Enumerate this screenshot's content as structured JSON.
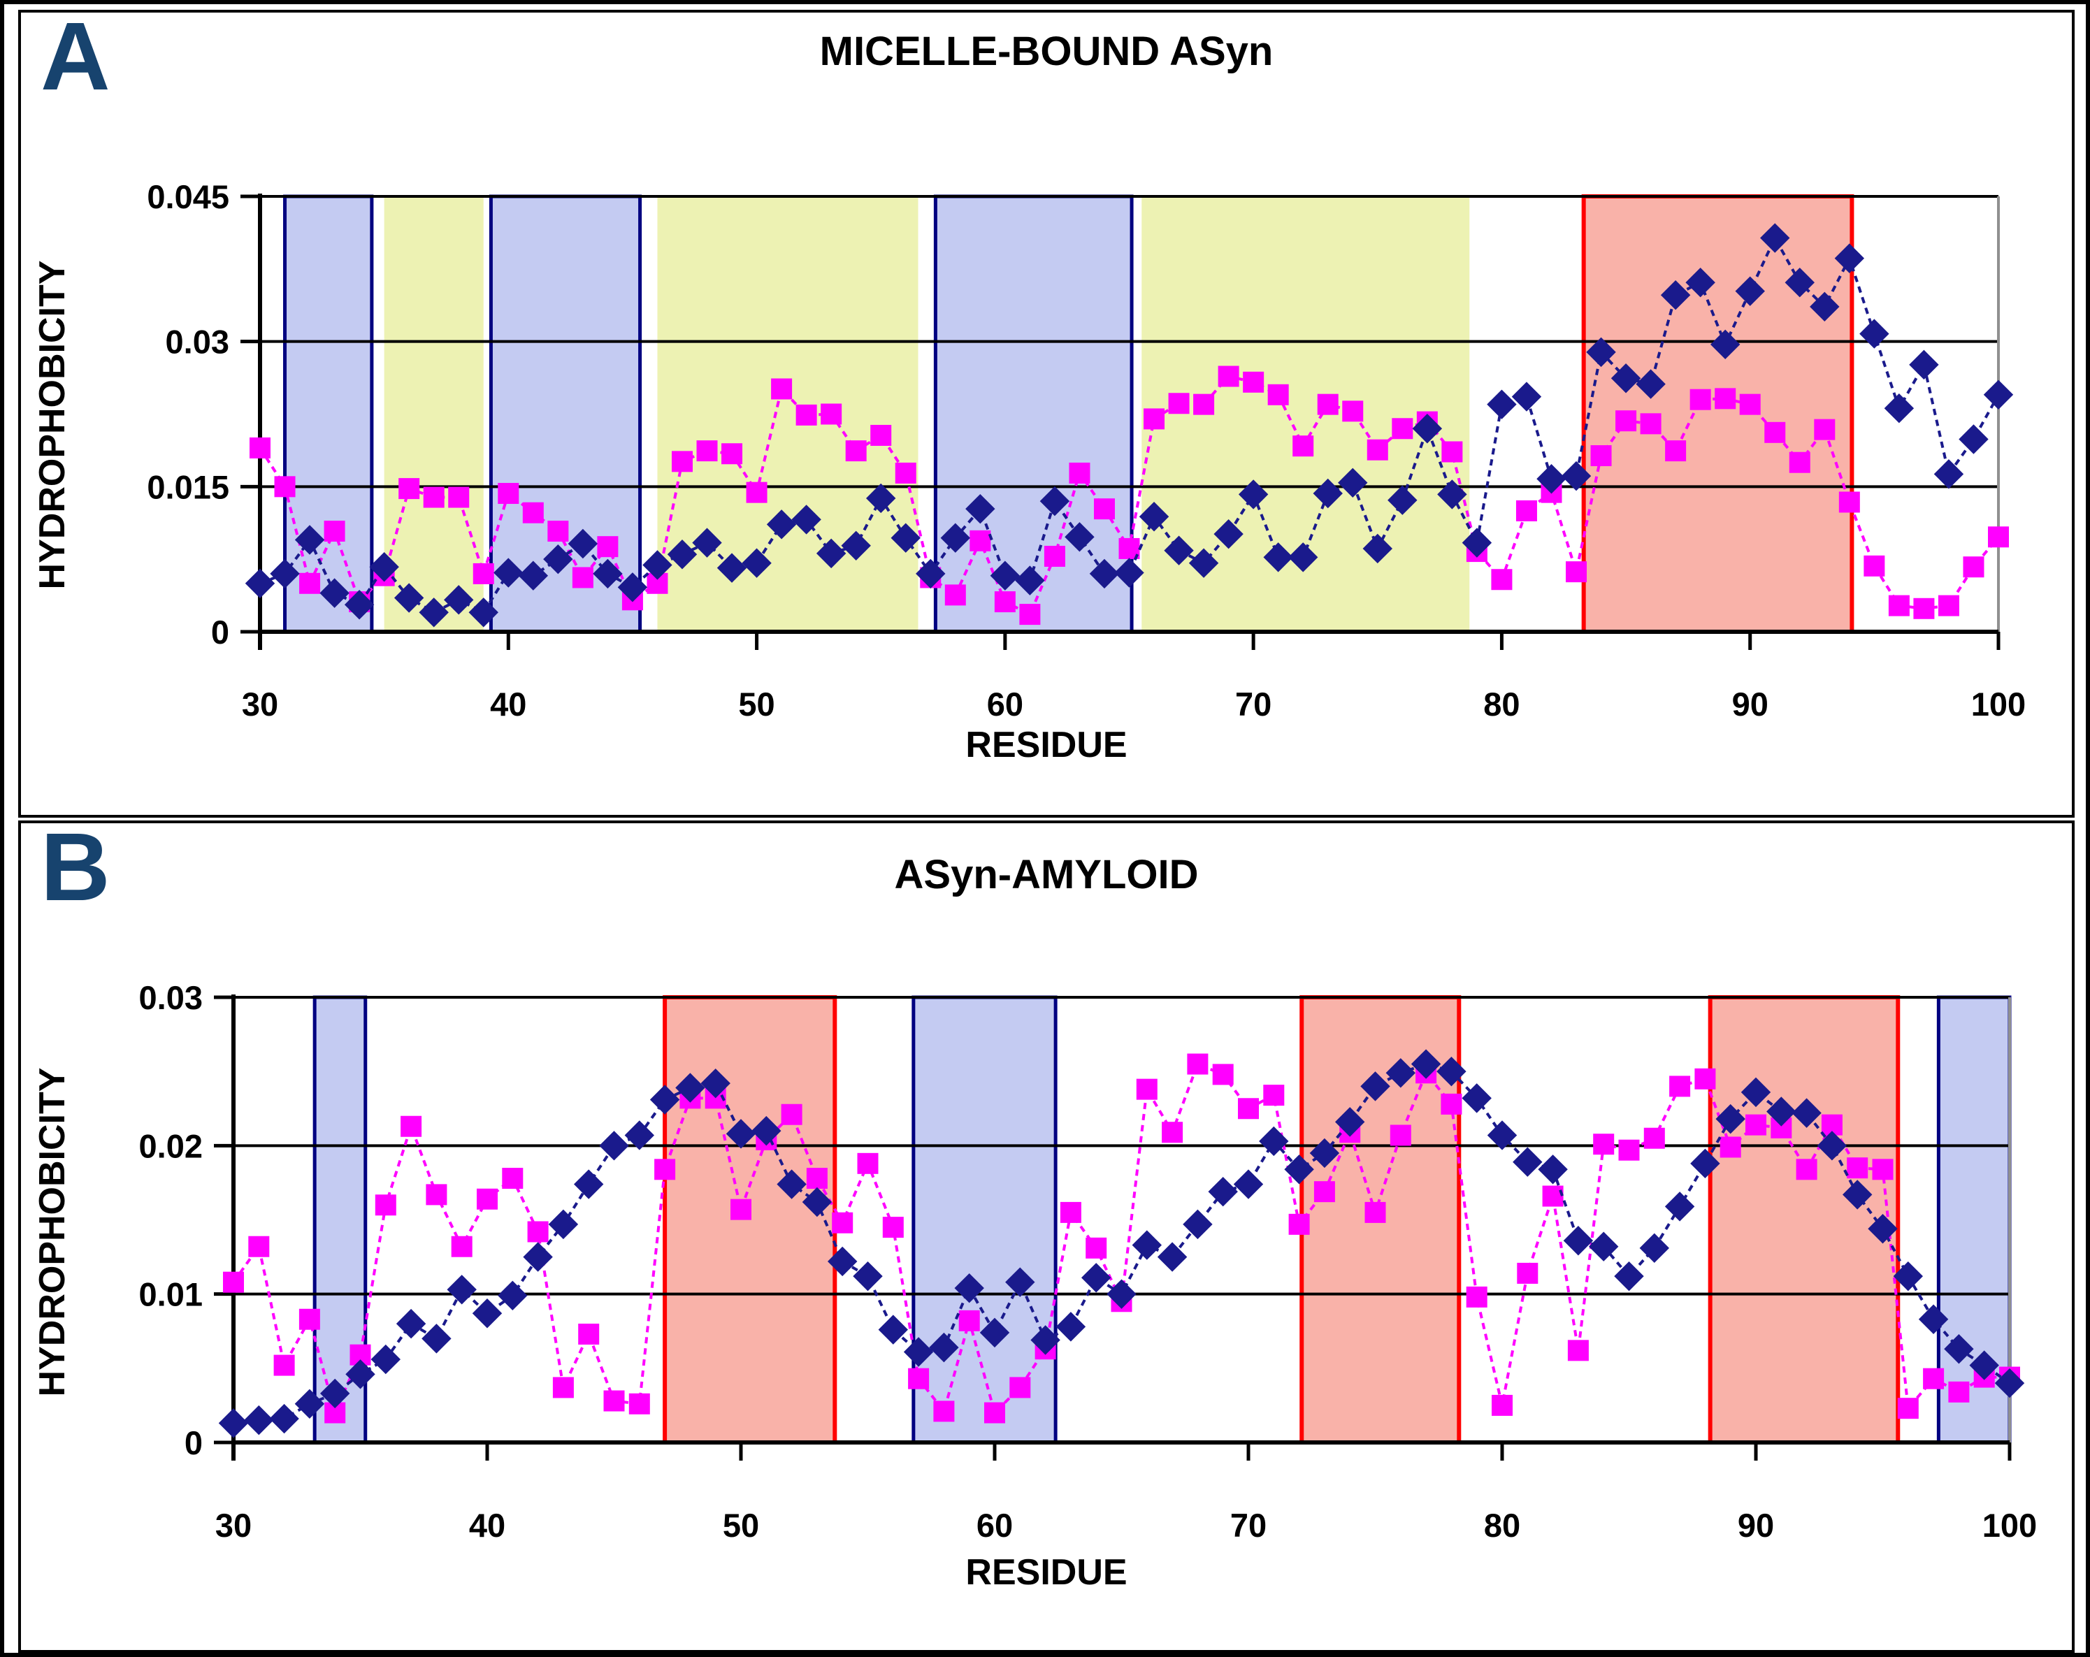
{
  "colors": {
    "navy_series": "#1a1a8c",
    "magenta_series": "#ff00ff",
    "blue_region_fill": "#c4cbf2",
    "blue_region_border": "#000080",
    "yellow_region_fill": "#edf2b3",
    "red_region_fill": "#f9b2a9",
    "red_region_border": "#ff0000",
    "panel_letter": "#17436e",
    "plot_right_edge": "#909090",
    "axis": "#000000"
  },
  "panels": {
    "A": {
      "letter": "A",
      "title": "MICELLE-BOUND ASyn",
      "x_axis_title": "RESIDUE",
      "y_axis_title": "HYDROPHOBICITY"
    },
    "B": {
      "letter": "B",
      "title": "ASyn-AMYLOID",
      "x_axis_title": "RESIDUE",
      "y_axis_title": "HYDROPHOBICITY"
    }
  },
  "chart_data": [
    {
      "panel": "A",
      "type": "line",
      "title": "MICELLE-BOUND ASyn",
      "xlabel": "RESIDUE",
      "ylabel": "HYDROPHOBICITY",
      "xlim": [
        30,
        100
      ],
      "ylim": [
        0,
        0.045
      ],
      "x_ticks": [
        30,
        40,
        50,
        60,
        70,
        80,
        90,
        100
      ],
      "y_tick_labels": [
        "0.045",
        "0.03",
        "0.015",
        "0"
      ],
      "y_tick_values": [
        0.045,
        0.03,
        0.015,
        0
      ],
      "grid": true,
      "legend": "none",
      "x_start": 30,
      "x_step": 1,
      "series": [
        {
          "name": "magenta-squares",
          "marker": "square",
          "color_key": "magenta_series",
          "values": [
            0.019,
            0.015,
            0.005,
            0.0104,
            0.0031,
            0.0058,
            0.0148,
            0.0139,
            0.0139,
            0.006,
            0.0143,
            0.0123,
            0.0104,
            0.0056,
            0.0088,
            0.0033,
            0.005,
            0.0176,
            0.0187,
            0.0184,
            0.0144,
            0.0251,
            0.0224,
            0.0225,
            0.0187,
            0.0203,
            0.0164,
            0.0056,
            0.0038,
            0.0094,
            0.0031,
            0.0018,
            0.0078,
            0.0164,
            0.0127,
            0.0086,
            0.022,
            0.0236,
            0.0235,
            0.0264,
            0.0258,
            0.0245,
            0.0192,
            0.0235,
            0.0228,
            0.0188,
            0.021,
            0.0217,
            0.0186,
            0.0083,
            0.0054,
            0.0125,
            0.0144,
            0.0062,
            0.0182,
            0.0218,
            0.0215,
            0.0187,
            0.024,
            0.0241,
            0.0235,
            0.0206,
            0.0175,
            0.0209,
            0.0134,
            0.0068,
            0.0027,
            0.0024,
            0.0027,
            0.0067,
            0.0098
          ]
        },
        {
          "name": "navy-diamonds",
          "marker": "diamond",
          "color_key": "navy_series",
          "values": [
            0.005,
            0.006,
            0.0095,
            0.004,
            0.0028,
            0.0067,
            0.0035,
            0.002,
            0.0033,
            0.002,
            0.0061,
            0.0058,
            0.0075,
            0.0091,
            0.006,
            0.0046,
            0.0069,
            0.008,
            0.0092,
            0.0066,
            0.0071,
            0.0111,
            0.0116,
            0.0081,
            0.0089,
            0.0138,
            0.0097,
            0.006,
            0.0097,
            0.0127,
            0.0058,
            0.0053,
            0.0135,
            0.0098,
            0.006,
            0.0061,
            0.0119,
            0.0084,
            0.0071,
            0.0101,
            0.0142,
            0.0077,
            0.0077,
            0.0143,
            0.0154,
            0.0086,
            0.0136,
            0.021,
            0.0142,
            0.0092,
            0.0235,
            0.0243,
            0.0158,
            0.0161,
            0.0289,
            0.0262,
            0.0256,
            0.0348,
            0.0361,
            0.0297,
            0.0352,
            0.0407,
            0.0361,
            0.0336,
            0.0386,
            0.0308,
            0.0231,
            0.0276,
            0.0163,
            0.0199,
            0.0245
          ]
        }
      ],
      "regions": [
        {
          "color": "blue",
          "from": 31,
          "to": 34.5
        },
        {
          "color": "yellow",
          "from": 35,
          "to": 39
        },
        {
          "color": "blue",
          "from": 39.3,
          "to": 45.3
        },
        {
          "color": "yellow",
          "from": 46,
          "to": 56.5
        },
        {
          "color": "blue",
          "from": 57.2,
          "to": 65.1
        },
        {
          "color": "yellow",
          "from": 65.5,
          "to": 78.7
        },
        {
          "color": "red",
          "from": 83.3,
          "to": 94.1
        }
      ]
    },
    {
      "panel": "B",
      "type": "line",
      "title": "ASyn-AMYLOID",
      "xlabel": "RESIDUE",
      "ylabel": "HYDROPHOBICITY",
      "xlim": [
        30,
        100
      ],
      "ylim": [
        0,
        0.03
      ],
      "x_ticks": [
        30,
        40,
        50,
        60,
        70,
        80,
        90,
        100
      ],
      "y_tick_labels": [
        "0.03",
        "0.02",
        "0.01",
        "0"
      ],
      "y_tick_values": [
        0.03,
        0.02,
        0.01,
        0
      ],
      "grid": true,
      "legend": "none",
      "x_start": 30,
      "x_step": 1,
      "series": [
        {
          "name": "magenta-squares",
          "marker": "square",
          "color_key": "magenta_series",
          "values": [
            0.0108,
            0.0132,
            0.0052,
            0.0083,
            0.002,
            0.0059,
            0.016,
            0.0213,
            0.0167,
            0.0132,
            0.0164,
            0.0178,
            0.0142,
            0.0037,
            0.0073,
            0.0028,
            0.0026,
            0.0184,
            0.0232,
            0.0232,
            0.0157,
            0.0204,
            0.0221,
            0.0178,
            0.0148,
            0.0188,
            0.0145,
            0.0043,
            0.0021,
            0.0082,
            0.002,
            0.0037,
            0.0063,
            0.0155,
            0.0131,
            0.0095,
            0.0238,
            0.0209,
            0.0255,
            0.0248,
            0.0225,
            0.0234,
            0.0147,
            0.0169,
            0.0209,
            0.0155,
            0.0207,
            0.0249,
            0.0228,
            0.0098,
            0.0025,
            0.0114,
            0.0166,
            0.0062,
            0.0201,
            0.0197,
            0.0205,
            0.024,
            0.0245,
            0.0199,
            0.0214,
            0.0212,
            0.0184,
            0.0214,
            0.0185,
            0.0184,
            0.0023,
            0.0043,
            0.0034,
            0.0044,
            0.0044
          ]
        },
        {
          "name": "navy-diamonds",
          "marker": "diamond",
          "color_key": "navy_series",
          "values": [
            0.0013,
            0.0015,
            0.0016,
            0.0026,
            0.0033,
            0.0046,
            0.0056,
            0.008,
            0.007,
            0.0103,
            0.0087,
            0.0099,
            0.0125,
            0.0147,
            0.0174,
            0.02,
            0.0207,
            0.0231,
            0.0239,
            0.0242,
            0.0208,
            0.021,
            0.0174,
            0.0162,
            0.0122,
            0.0112,
            0.0076,
            0.0061,
            0.0064,
            0.0104,
            0.0074,
            0.0108,
            0.0069,
            0.0078,
            0.0111,
            0.01,
            0.0133,
            0.0125,
            0.0147,
            0.0169,
            0.0174,
            0.0203,
            0.0184,
            0.0195,
            0.0216,
            0.024,
            0.0249,
            0.0255,
            0.025,
            0.0232,
            0.0207,
            0.0189,
            0.0184,
            0.0136,
            0.0132,
            0.0112,
            0.0131,
            0.0159,
            0.0188,
            0.0218,
            0.0236,
            0.0223,
            0.0222,
            0.02,
            0.0167,
            0.0144,
            0.0112,
            0.0083,
            0.0063,
            0.0052,
            0.004
          ]
        }
      ],
      "regions": [
        {
          "color": "blue",
          "from": 33.2,
          "to": 35.2
        },
        {
          "color": "red",
          "from": 47,
          "to": 53.7
        },
        {
          "color": "blue",
          "from": 56.8,
          "to": 62.4
        },
        {
          "color": "red",
          "from": 72.1,
          "to": 78.3
        },
        {
          "color": "red",
          "from": 88.2,
          "to": 95.6
        },
        {
          "color": "blue",
          "from": 97.2,
          "to": 100
        }
      ]
    }
  ]
}
